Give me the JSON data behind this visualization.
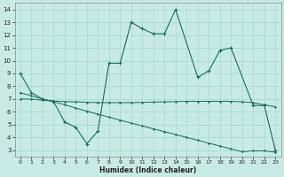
{
  "xlabel": "Humidex (Indice chaleur)",
  "bg_color": "#c8eae4",
  "line_color": "#1a6b5e",
  "grid_color": "#a8d8d0",
  "xlim": [
    -0.5,
    23.5
  ],
  "ylim": [
    2.5,
    14.5
  ],
  "xticks": [
    0,
    1,
    2,
    3,
    4,
    5,
    6,
    7,
    8,
    9,
    10,
    11,
    12,
    13,
    14,
    15,
    16,
    17,
    18,
    19,
    20,
    21,
    22,
    23
  ],
  "yticks": [
    3,
    4,
    5,
    6,
    7,
    8,
    9,
    10,
    11,
    12,
    13,
    14
  ],
  "jagged_x": [
    0,
    1,
    2,
    3,
    4,
    5,
    6,
    7,
    8,
    9,
    10,
    11,
    12,
    13,
    14,
    16,
    17,
    18,
    19,
    21,
    22,
    23
  ],
  "jagged_y": [
    9.0,
    7.5,
    7.0,
    6.8,
    5.2,
    4.8,
    3.5,
    4.5,
    9.8,
    9.8,
    13.0,
    12.5,
    12.1,
    12.1,
    14.0,
    8.7,
    9.2,
    10.8,
    11.0,
    6.5,
    6.5,
    3.0
  ],
  "flat_x": [
    0,
    1,
    2,
    3,
    4,
    5,
    6,
    7,
    8,
    9,
    10,
    11,
    12,
    13,
    14,
    15,
    16,
    17,
    18,
    19,
    20,
    21,
    22,
    23
  ],
  "flat_y": [
    7.0,
    7.0,
    6.9,
    6.85,
    6.8,
    6.78,
    6.75,
    6.72,
    6.72,
    6.72,
    6.72,
    6.74,
    6.76,
    6.78,
    6.8,
    6.82,
    6.82,
    6.82,
    6.82,
    6.82,
    6.78,
    6.72,
    6.55,
    6.4
  ],
  "desc_x": [
    0,
    1,
    2,
    3,
    4,
    5,
    6,
    7,
    8,
    9,
    10,
    11,
    12,
    13,
    14,
    15,
    16,
    17,
    18,
    19,
    20,
    21,
    22,
    23
  ],
  "desc_y": [
    7.5,
    7.25,
    7.0,
    6.8,
    6.55,
    6.3,
    6.05,
    5.82,
    5.58,
    5.35,
    5.12,
    4.9,
    4.67,
    4.45,
    4.22,
    4.0,
    3.78,
    3.55,
    3.33,
    3.1,
    2.88,
    2.95,
    2.95,
    2.85
  ]
}
